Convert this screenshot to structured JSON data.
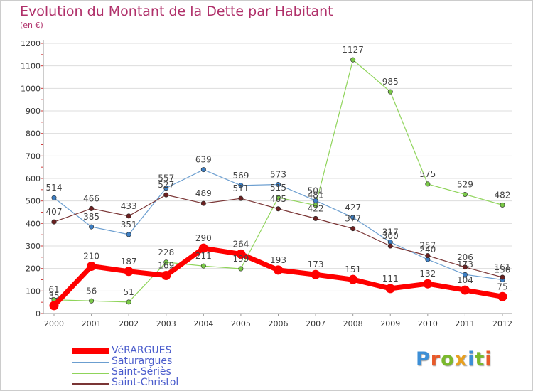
{
  "title": "Evolution du Montant de la Dette par Habitant",
  "subtitle": "(en €)",
  "logo": {
    "text": "Proxiti",
    "letter_colors": [
      "#3d8fd6",
      "#e85a2a",
      "#7ab92c",
      "#e8a020",
      "#3d8fd6",
      "#7ab92c",
      "#e85a2a"
    ]
  },
  "chart_data": {
    "type": "line",
    "title": "Evolution du Montant de la Dette par Habitant",
    "subtitle": "(en €)",
    "xlabel": "",
    "ylabel": "",
    "categories": [
      "2000",
      "2001",
      "2002",
      "2003",
      "2004",
      "2005",
      "2006",
      "2007",
      "2008",
      "2009",
      "2010",
      "2011",
      "2012"
    ],
    "ylim": [
      0,
      1200
    ],
    "yticks": [
      0,
      100,
      200,
      300,
      400,
      500,
      600,
      700,
      800,
      900,
      1000,
      1100,
      1200
    ],
    "grid": true,
    "legend_position": "bottom-left",
    "series": [
      {
        "name": "Saint-Sériès",
        "color": "#8fd45a",
        "marker_color": "#7ac948",
        "width": 1.2,
        "marker_r": 3.2,
        "values": [
          61,
          56,
          51,
          228,
          211,
          199,
          515,
          481,
          1127,
          985,
          575,
          529,
          482
        ],
        "labels": [
          "61",
          "56",
          "51",
          "228",
          "211",
          "199",
          "515",
          "481",
          "1127",
          "985",
          "575",
          "529",
          "482"
        ]
      },
      {
        "name": "Saturargues",
        "color": "#6b9ed0",
        "marker_color": "#3d7fc4",
        "width": 1.2,
        "marker_r": 3.2,
        "values": [
          514,
          385,
          351,
          557,
          639,
          569,
          573,
          501,
          427,
          317,
          240,
          173,
          150
        ],
        "labels": [
          "514",
          "385",
          "351",
          "557",
          "639",
          "569",
          "573",
          "501",
          "427",
          "317",
          "240",
          "173",
          "150"
        ]
      },
      {
        "name": "Saint-Christol",
        "color": "#7a3535",
        "marker_color": "#6b2020",
        "width": 1.2,
        "marker_r": 3.2,
        "values": [
          407,
          466,
          433,
          527,
          489,
          511,
          465,
          422,
          377,
          300,
          257,
          206,
          161
        ],
        "labels": [
          "407",
          "466",
          "433",
          "527",
          "489",
          "511",
          "465",
          "422",
          "377",
          "300",
          "257",
          "206",
          "161"
        ]
      },
      {
        "name": "VéRARGUES",
        "color": "#ff0000",
        "marker_color": "#ff0000",
        "width": 7,
        "marker_r": 6.5,
        "values": [
          35,
          210,
          187,
          169,
          290,
          264,
          193,
          173,
          151,
          111,
          132,
          104,
          75
        ],
        "labels": [
          "35",
          "210",
          "187",
          "169",
          "290",
          "264",
          "193",
          "173",
          "151",
          "111",
          "132",
          "104",
          "75"
        ]
      }
    ],
    "legend": [
      {
        "name": "VéRARGUES",
        "color": "#ff0000",
        "thick": true
      },
      {
        "name": "Saturargues",
        "color": "#6b9ed0",
        "thick": false
      },
      {
        "name": "Saint-Sériès",
        "color": "#8fd45a",
        "thick": false
      },
      {
        "name": "Saint-Christol",
        "color": "#7a3535",
        "thick": false
      }
    ]
  }
}
